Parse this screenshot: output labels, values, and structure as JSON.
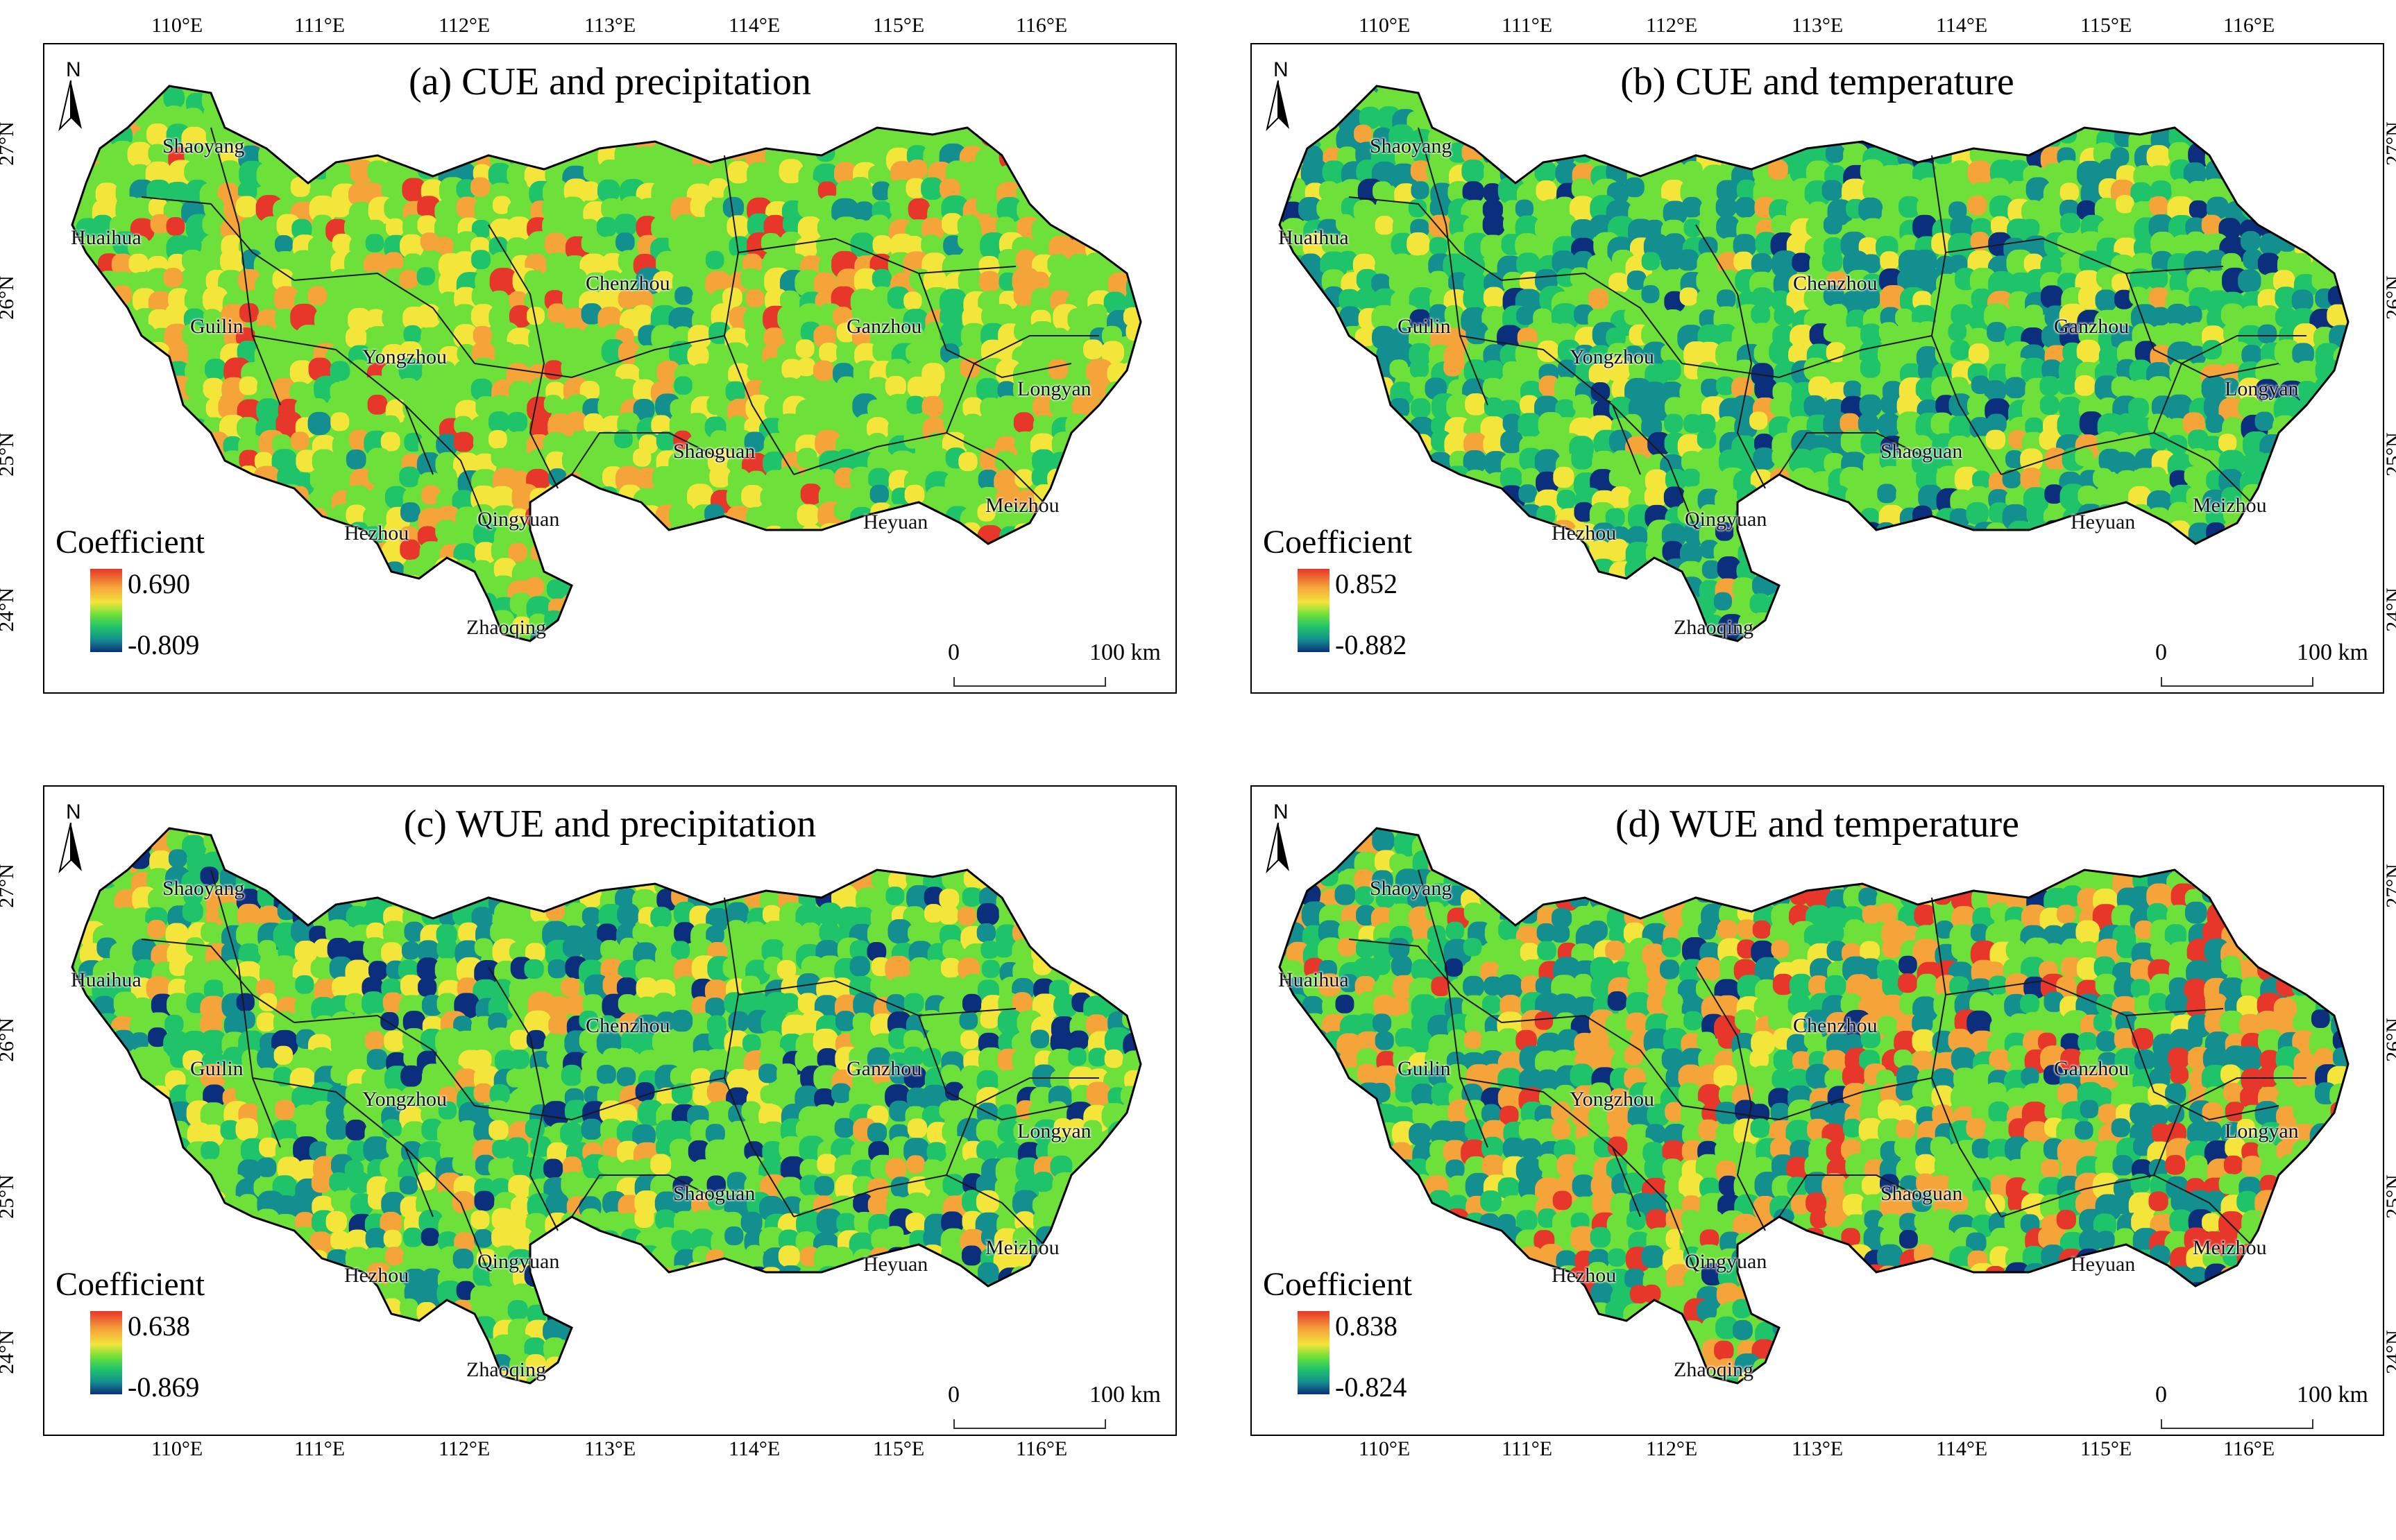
{
  "panels": [
    {
      "title": "(a) CUE and precipitation",
      "legend_title": "Coefficient",
      "max": "0.690",
      "min": "-0.809",
      "style": "a"
    },
    {
      "title": "(b) CUE and temperature",
      "legend_title": "Coefficient",
      "max": "0.852",
      "min": "-0.882",
      "style": "b"
    },
    {
      "title": "(c) WUE and precipitation",
      "legend_title": "Coefficient",
      "max": "0.638",
      "min": "-0.869",
      "style": "c"
    },
    {
      "title": "(d) WUE and temperature",
      "legend_title": "Coefficient",
      "max": "0.838",
      "min": "-0.824",
      "style": "d"
    }
  ],
  "north_label": "N",
  "scale_bar": {
    "start": "0",
    "end": "100 km"
  },
  "lon_ticks": [
    "110°E",
    "111°E",
    "112°E",
    "113°E",
    "114°E",
    "115°E",
    "116°E"
  ],
  "lat_ticks": [
    "27°N",
    "26°N",
    "25°N",
    "24°N"
  ],
  "cities": [
    "Shaoyang",
    "Huaihua",
    "Guilin",
    "Yongzhou",
    "Chenzhou",
    "Ganzhou",
    "Longyan",
    "Shaoguan",
    "Meizhou",
    "Heyuan",
    "Qingyuan",
    "Hezhou",
    "Zhaoqing"
  ],
  "colors": {
    "high": "#e6372a",
    "orange": "#f5a43a",
    "yellow": "#f3e53a",
    "green": "#6ee03a",
    "teal": "#1fc36a",
    "blue_green": "#148f8f",
    "low": "#0b2f7c"
  }
}
